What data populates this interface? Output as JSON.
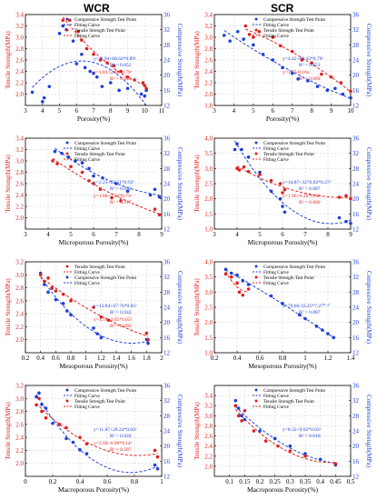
{
  "column_titles": [
    "WCR",
    "SCR"
  ],
  "colors": {
    "tensile": "#e02020",
    "compressive": "#1f3fd8",
    "grid": "#cccccc"
  },
  "chart_data": [
    {
      "type": "scatter",
      "col": 0,
      "row": 0,
      "xlabel": "Porosity(%)",
      "ylabel_left": "Tensile Strength(MPa)",
      "ylabel_right": "Compressive Strength(MPa)",
      "xlim": [
        3,
        11
      ],
      "xticks": [
        3,
        4,
        5,
        6,
        7,
        8,
        9,
        10,
        11
      ],
      "ylim_left": [
        1.8,
        3.4
      ],
      "yticks_left": [
        2.0,
        2.2,
        2.4,
        2.6,
        2.8,
        3.0,
        3.2,
        3.4
      ],
      "ylim_right": [
        12,
        36
      ],
      "yticks_right": [
        12,
        16,
        20,
        24,
        28,
        32,
        36
      ],
      "legend": [
        "Compressive Strength Test Point",
        "Fitting Curve",
        "Tensile Strength Test Point",
        "Fitting Curve"
      ],
      "eq_comp": "y=-8.94+68.64*0.89ˣ",
      "r2_comp": "R² = 0.852",
      "eq_tens": "y=1.83+2.98*0.79ˣ",
      "r2_tens": "R² = 0.945",
      "tensile_points": [
        [
          5.2,
          3.3
        ],
        [
          5.6,
          3.3
        ],
        [
          6.1,
          3.1
        ],
        [
          6.3,
          2.95
        ],
        [
          6.6,
          2.8
        ],
        [
          7.0,
          2.7
        ],
        [
          7.4,
          2.6
        ],
        [
          7.8,
          2.55
        ],
        [
          8.2,
          2.5
        ],
        [
          8.6,
          2.4
        ],
        [
          9.0,
          2.3
        ],
        [
          9.4,
          2.25
        ],
        [
          9.9,
          2.2
        ],
        [
          10.0,
          2.15
        ],
        [
          10.1,
          2.1
        ]
      ],
      "compressive_points": [
        [
          3.4,
          15.5
        ],
        [
          4.0,
          13.0
        ],
        [
          4.1,
          14.0
        ],
        [
          4.4,
          17.0
        ],
        [
          5.0,
          31.0
        ],
        [
          5.2,
          33.0
        ],
        [
          5.4,
          32.0
        ],
        [
          5.8,
          29.0
        ],
        [
          6.0,
          23.0
        ],
        [
          6.3,
          25.5
        ],
        [
          6.5,
          22.0
        ],
        [
          6.8,
          21.0
        ],
        [
          7.0,
          20.5
        ],
        [
          7.2,
          19.5
        ],
        [
          7.5,
          17.0
        ],
        [
          8.0,
          18.0
        ],
        [
          8.5,
          16.0
        ],
        [
          9.0,
          16.5
        ],
        [
          9.8,
          15.0
        ],
        [
          10.0,
          14.5
        ],
        [
          10.1,
          16.0
        ]
      ]
    },
    {
      "type": "scatter",
      "col": 1,
      "row": 0,
      "xlabel": "Porosity(%)",
      "ylabel_left": "Tensile Strength(MPa)",
      "ylabel_right": "Compressive Strength(MPa)",
      "xlim": [
        3,
        10
      ],
      "xticks": [
        3,
        4,
        5,
        6,
        7,
        8,
        9,
        10
      ],
      "ylim_left": [
        1.8,
        3.4
      ],
      "yticks_left": [
        1.8,
        2.0,
        2.2,
        2.4,
        2.6,
        2.8,
        3.0,
        3.2,
        3.4
      ],
      "ylim_right": [
        12,
        36
      ],
      "yticks_right": [
        12,
        16,
        20,
        24,
        28,
        32,
        36
      ],
      "legend": [
        "Compressive Strength Test Point",
        "Fitting Curve",
        "Tensile Strength Test Point",
        "Fitting Curve"
      ],
      "eq_comp": "y=4.42+69.43*0.79ˣ",
      "r2_comp": "R² = 0.853",
      "eq_tens": "y=1.75-0.16x",
      "r2_tens": "R² = 0.689",
      "tensile_points": [
        [
          4.6,
          3.2
        ],
        [
          4.8,
          3.05
        ],
        [
          5.0,
          3.0
        ],
        [
          5.3,
          3.1
        ],
        [
          6.0,
          3.0
        ],
        [
          6.4,
          2.85
        ],
        [
          7.0,
          2.75
        ],
        [
          7.5,
          2.6
        ],
        [
          8.0,
          2.55
        ],
        [
          8.5,
          2.35
        ],
        [
          9.0,
          2.3
        ],
        [
          9.5,
          2.2
        ],
        [
          10.0,
          2.05
        ]
      ],
      "compressive_points": [
        [
          3.5,
          30.5
        ],
        [
          3.8,
          29.0
        ],
        [
          4.2,
          31.5
        ],
        [
          4.5,
          29.5
        ],
        [
          5.0,
          28.0
        ],
        [
          5.5,
          25.5
        ],
        [
          6.0,
          24.0
        ],
        [
          6.5,
          22.0
        ],
        [
          7.0,
          20.5
        ],
        [
          7.3,
          19.0
        ],
        [
          7.8,
          18.5
        ],
        [
          8.3,
          17.0
        ],
        [
          8.8,
          16.0
        ],
        [
          9.2,
          16.5
        ],
        [
          9.6,
          15.0
        ],
        [
          10.0,
          14.0
        ]
      ]
    },
    {
      "type": "scatter",
      "col": 0,
      "row": 1,
      "xlabel": "Microporous Porosity(%)",
      "ylabel_left": "Tensile Strength(MPa)",
      "ylabel_right": "Compressive Strength(MPa)",
      "xlim": [
        3,
        9
      ],
      "xticks": [
        3,
        4,
        5,
        6,
        7,
        8,
        9
      ],
      "ylim_left": [
        1.8,
        3.4
      ],
      "yticks_left": [
        2.0,
        2.2,
        2.4,
        2.6,
        2.8,
        3.0,
        3.2,
        3.4
      ],
      "ylim_right": [
        12,
        36
      ],
      "yticks_right": [
        12,
        16,
        20,
        24,
        28,
        32,
        36
      ],
      "legend": [
        "Compressive Strength Test Point",
        "Fitting Curve",
        "Tensile Strength Test Point",
        "Fitting Curve"
      ],
      "eq_comp": "y=2.23+22.51*0.92ˣ",
      "r2_comp": "R² = 0.832",
      "eq_tens": "y=1.86+1.53*0.73ˣ",
      "r2_tens": "R² = 0.917",
      "tensile_points": [
        [
          4.2,
          3.0
        ],
        [
          4.4,
          2.95
        ],
        [
          5.0,
          2.9
        ],
        [
          5.5,
          2.8
        ],
        [
          5.8,
          2.65
        ],
        [
          6.0,
          2.6
        ],
        [
          6.3,
          2.5
        ],
        [
          6.8,
          2.35
        ],
        [
          7.2,
          2.3
        ],
        [
          8.7,
          2.15
        ],
        [
          8.9,
          2.05
        ]
      ],
      "compressive_points": [
        [
          4.3,
          32.5
        ],
        [
          4.6,
          32.0
        ],
        [
          4.9,
          31.0
        ],
        [
          5.2,
          30.0
        ],
        [
          5.5,
          29.5
        ],
        [
          5.8,
          28.0
        ],
        [
          6.0,
          26.0
        ],
        [
          6.4,
          25.5
        ],
        [
          7.0,
          24.0
        ],
        [
          7.5,
          22.0
        ],
        [
          8.5,
          21.0
        ],
        [
          8.7,
          22.5
        ],
        [
          8.9,
          20.5
        ]
      ]
    },
    {
      "type": "scatter",
      "col": 1,
      "row": 1,
      "xlabel": "Microporous Porosity(%)",
      "ylabel_left": "Tensile Strength(MPa)",
      "ylabel_right": "Compressive Strength(MPa)",
      "xlim": [
        3,
        9
      ],
      "xticks": [
        3,
        4,
        5,
        6,
        7,
        8,
        9
      ],
      "ylim_left": [
        1.0,
        4.0
      ],
      "yticks_left": [
        1.0,
        1.5,
        2.0,
        2.5,
        3.0,
        3.5,
        4.0
      ],
      "ylim_right": [
        12,
        36
      ],
      "yticks_right": [
        12,
        16,
        20,
        24,
        28,
        32,
        36
      ],
      "legend": [
        "Compressive Strength Test Point",
        "Fitting Curve",
        "Tensile Strength Test Point",
        "Fitting Curve"
      ],
      "eq_tens": "y=1.96+9.26*0.60ˣ",
      "r2_tens": "R² = 0.880",
      "eq_comp": "y=14.87+3276.82*0.27ˣ",
      "r2_comp": "R² = 0.887",
      "tensile_points": [
        [
          4.0,
          3.0
        ],
        [
          4.1,
          2.95
        ],
        [
          4.3,
          3.05
        ],
        [
          4.5,
          2.9
        ],
        [
          5.0,
          2.8
        ],
        [
          5.5,
          2.6
        ],
        [
          5.9,
          2.5
        ],
        [
          6.0,
          2.2
        ],
        [
          6.1,
          2.3
        ],
        [
          8.5,
          2.05
        ],
        [
          8.8,
          2.1
        ],
        [
          9.0,
          2.0
        ]
      ],
      "compressive_points": [
        [
          3.9,
          33.0
        ],
        [
          4.0,
          34.5
        ],
        [
          4.2,
          33.0
        ],
        [
          4.5,
          31.0
        ],
        [
          5.0,
          27.0
        ],
        [
          5.5,
          22.0
        ],
        [
          5.9,
          20.0
        ],
        [
          6.0,
          18.0
        ],
        [
          6.1,
          16.5
        ],
        [
          8.5,
          15.0
        ],
        [
          8.8,
          14.0
        ],
        [
          9.0,
          13.5
        ]
      ]
    },
    {
      "type": "scatter",
      "col": 0,
      "row": 2,
      "xlabel": "Mesoporous Porosity(%)",
      "ylabel_left": "Tensile Strength(MPa)",
      "ylabel_right": "Compressive Strength(MPa)",
      "xlim": [
        0.2,
        2.0
      ],
      "xticks": [
        0.2,
        0.4,
        0.6,
        0.8,
        1.0,
        1.2,
        1.4,
        1.6,
        1.8,
        2.0
      ],
      "ylim_left": [
        1.8,
        3.2
      ],
      "yticks_left": [
        2.0,
        2.2,
        2.4,
        2.6,
        2.8,
        3.0,
        3.2
      ],
      "ylim_right": [
        12,
        36
      ],
      "yticks_right": [
        12,
        16,
        20,
        24,
        28,
        32,
        36
      ],
      "legend": [
        "Tensile Strength Test Point",
        "Fitting Curve",
        "Compressive Strength Test Point",
        "Fitting Curve"
      ],
      "eq_tens": "y=1.18+2.05*0.65ˣ",
      "r2_tens": "R² = 0.692",
      "eq_comp": "y=13.84+67.76*0.05ˣ",
      "r2_comp": "R² = 0.942",
      "tensile_points": [
        [
          0.4,
          3.0
        ],
        [
          0.45,
          2.9
        ],
        [
          0.5,
          2.95
        ],
        [
          0.55,
          2.8
        ],
        [
          0.6,
          2.75
        ],
        [
          0.7,
          2.7
        ],
        [
          0.8,
          2.6
        ],
        [
          1.1,
          2.5
        ],
        [
          1.2,
          2.35
        ],
        [
          1.3,
          2.3
        ],
        [
          1.8,
          2.1
        ],
        [
          1.82,
          2.0
        ]
      ],
      "compressive_points": [
        [
          0.4,
          33.0
        ],
        [
          0.45,
          30.0
        ],
        [
          0.5,
          28.0
        ],
        [
          0.55,
          29.0
        ],
        [
          0.6,
          26.0
        ],
        [
          0.7,
          25.0
        ],
        [
          0.75,
          23.0
        ],
        [
          0.8,
          22.0
        ],
        [
          1.1,
          18.5
        ],
        [
          1.15,
          17.0
        ],
        [
          1.2,
          16.0
        ],
        [
          1.8,
          15.5
        ],
        [
          1.82,
          14.5
        ]
      ]
    },
    {
      "type": "scatter",
      "col": 1,
      "row": 2,
      "xlabel": "Mesoporous Porosity(%)",
      "ylabel_left": "Tensile Strength(MPa)",
      "ylabel_right": "Compressive Strength(MPa)",
      "xlim": [
        0.2,
        1.4
      ],
      "xticks": [
        0.2,
        0.4,
        0.6,
        0.8,
        1.0,
        1.2,
        1.4
      ],
      "ylim_left": [
        1.0,
        4.0
      ],
      "yticks_left": [
        1.0,
        1.5,
        2.0,
        2.5,
        3.0,
        3.5,
        4.0
      ],
      "ylim_right": [
        12,
        36
      ],
      "yticks_right": [
        12,
        16,
        20,
        24,
        28,
        32,
        36
      ],
      "legend": [
        "Compressive Strength Test Point",
        "Fitting Curve",
        "Tensile Strength Test Point",
        "Fitting Curve"
      ],
      "eq_comp": "y=70.66-33.25*7.27⁰·⁴⁷",
      "r2_comp": "R² = 0.887",
      "tensile_points": [
        [
          0.3,
          3.6
        ],
        [
          0.35,
          3.5
        ],
        [
          0.4,
          3.3
        ],
        [
          0.42,
          3.0
        ],
        [
          0.45,
          2.9
        ],
        [
          0.5,
          3.1
        ]
      ],
      "compressive_points": [
        [
          0.3,
          34.0
        ],
        [
          0.35,
          33.0
        ],
        [
          0.4,
          32.5
        ],
        [
          0.45,
          31.0
        ],
        [
          0.5,
          30.0
        ],
        [
          0.7,
          27.0
        ],
        [
          0.8,
          25.0
        ],
        [
          0.95,
          22.0
        ],
        [
          1.0,
          21.0
        ],
        [
          1.1,
          19.0
        ],
        [
          1.15,
          18.0
        ],
        [
          1.2,
          17.0
        ],
        [
          1.25,
          16.0
        ]
      ]
    },
    {
      "type": "scatter",
      "col": 0,
      "row": 3,
      "xlabel": "Macroporous Porosity(%)",
      "ylabel_left": "Tensile Strength(MPa)",
      "ylabel_right": "Compressive Strength(MPa)",
      "xlim": [
        0.0,
        1.0
      ],
      "xticks": [
        0.0,
        0.2,
        0.4,
        0.6,
        0.8,
        1.0
      ],
      "ylim_left": [
        1.8,
        3.2
      ],
      "yticks_left": [
        2.0,
        2.2,
        2.4,
        2.6,
        2.8,
        3.0,
        3.2
      ],
      "ylim_right": [
        12,
        36
      ],
      "yticks_right": [
        12,
        16,
        20,
        24,
        28,
        32,
        36
      ],
      "legend": [
        "Compressive Strength Test Point",
        "Fitting Curve",
        "Tensile Strength Test Point",
        "Fitting Curve"
      ],
      "eq_comp": "y=11.87+28.24*0.04ˣ",
      "r2_comp": "R² = 0.926",
      "eq_tens": "y=2.00+0.98*0.14ˣ",
      "r2_tens": "R² = 0.587",
      "tensile_points": [
        [
          0.08,
          2.9
        ],
        [
          0.1,
          3.0
        ],
        [
          0.12,
          2.8
        ],
        [
          0.15,
          2.7
        ],
        [
          0.25,
          2.6
        ],
        [
          0.3,
          2.55
        ],
        [
          0.4,
          2.4
        ],
        [
          0.45,
          2.3
        ],
        [
          0.95,
          2.2
        ],
        [
          0.97,
          2.1
        ]
      ],
      "compressive_points": [
        [
          0.08,
          33.0
        ],
        [
          0.1,
          34.0
        ],
        [
          0.12,
          31.0
        ],
        [
          0.15,
          30.0
        ],
        [
          0.2,
          26.0
        ],
        [
          0.3,
          22.0
        ],
        [
          0.35,
          21.0
        ],
        [
          0.4,
          19.0
        ],
        [
          0.45,
          18.0
        ],
        [
          0.95,
          15.0
        ],
        [
          0.97,
          14.0
        ]
      ]
    },
    {
      "type": "scatter",
      "col": 1,
      "row": 3,
      "xlabel": "Macroporous Porosity(%)",
      "ylabel_left": "Tensile Strength(MPa)",
      "ylabel_right": "Compressive Strength(MPa)",
      "xlim": [
        0.05,
        0.5
      ],
      "xticks": [
        0.1,
        0.15,
        0.2,
        0.25,
        0.3,
        0.35,
        0.4,
        0.45,
        0.5
      ],
      "ylim_left": [
        1.8,
        3.6
      ],
      "yticks_left": [
        2.0,
        2.2,
        2.4,
        2.6,
        2.8,
        3.0,
        3.2,
        3.4
      ],
      "ylim_right": [
        12,
        36
      ],
      "yticks_right": [
        12,
        16,
        20,
        24,
        28,
        32,
        36
      ],
      "legend": [
        "Compressive Strength Test Point",
        "Fitting Curve",
        "Tensile Strength Test Point",
        "Fitting Curve"
      ],
      "eq_comp": "y=8.32+9.62*0.03ˣ",
      "r2_comp": "R² = 0.816",
      "tensile_points": [
        [
          0.12,
          3.2
        ],
        [
          0.13,
          3.0
        ],
        [
          0.14,
          2.9
        ],
        [
          0.15,
          3.1
        ],
        [
          0.18,
          2.7
        ],
        [
          0.22,
          2.5
        ],
        [
          0.26,
          2.4
        ],
        [
          0.3,
          2.3
        ],
        [
          0.35,
          2.2
        ],
        [
          0.45,
          2.05
        ]
      ],
      "compressive_points": [
        [
          0.12,
          32.0
        ],
        [
          0.13,
          30.0
        ],
        [
          0.14,
          28.0
        ],
        [
          0.15,
          27.0
        ],
        [
          0.2,
          24.0
        ],
        [
          0.25,
          22.0
        ],
        [
          0.3,
          20.0
        ],
        [
          0.35,
          18.0
        ],
        [
          0.4,
          16.5
        ],
        [
          0.45,
          15.0
        ]
      ]
    }
  ]
}
